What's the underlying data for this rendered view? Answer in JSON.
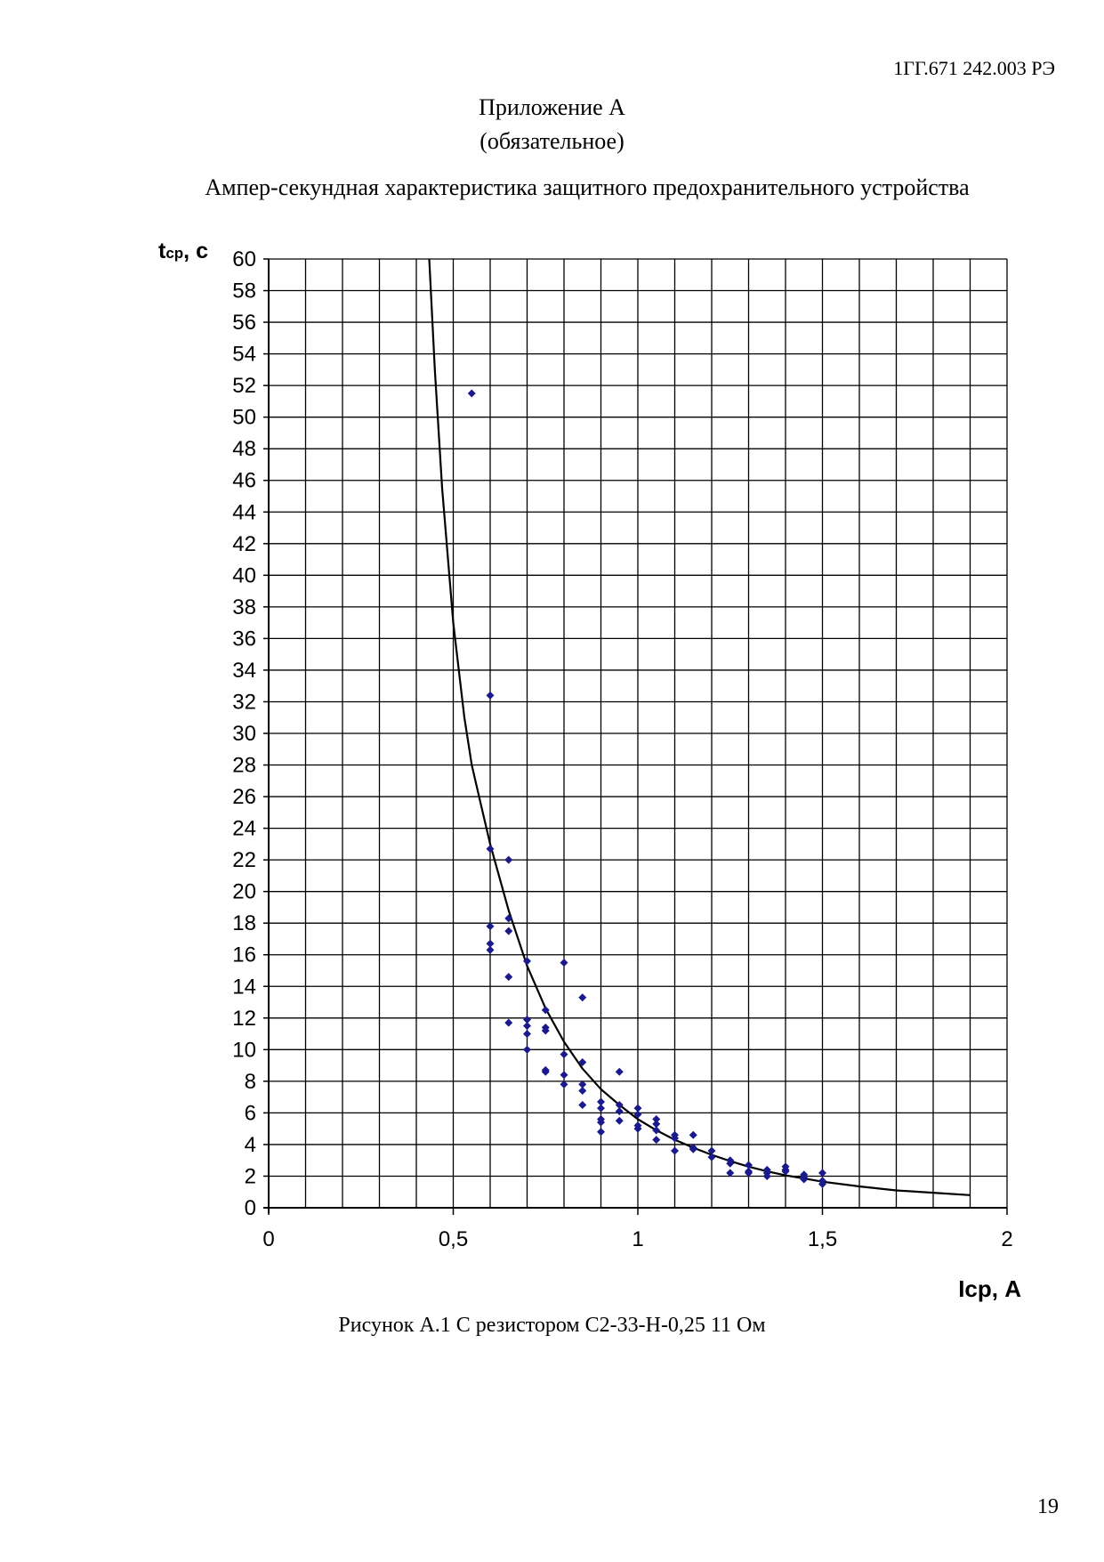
{
  "header": {
    "doc_code": "1ГГ.671 242.003 РЭ",
    "appendix_title": "Приложение А",
    "appendix_status": "(обязательное)",
    "chart_heading": "Ампер-секундная характеристика защитного предохранительного устройства"
  },
  "caption": "Рисунок А.1 С резистором С2-33-Н-0,25 11 Ом",
  "page_number": "19",
  "chart_data": {
    "type": "scatter",
    "title": "Ампер-секундная характеристика защитного предохранительного устройства",
    "ylabel_main": "t",
    "ylabel_sub": "ср",
    "ylabel_unit": ", с",
    "xlabel": "Iср, А",
    "xlim": [
      0,
      2
    ],
    "ylim": [
      0,
      60
    ],
    "x_ticks": [
      "0",
      "0,5",
      "1",
      "1,5",
      "2"
    ],
    "x_tick_values": [
      0,
      0.5,
      1,
      1.5,
      2
    ],
    "y_ticks": [
      0,
      2,
      4,
      6,
      8,
      10,
      12,
      14,
      16,
      18,
      20,
      22,
      24,
      26,
      28,
      30,
      32,
      34,
      36,
      38,
      40,
      42,
      44,
      46,
      48,
      50,
      52,
      54,
      56,
      58,
      60
    ],
    "x_grid_step": 0.1,
    "grid": true,
    "marker_color": "#1a1a8c",
    "curve_color": "#000000",
    "points": [
      [
        0.55,
        51.5
      ],
      [
        0.6,
        32.4
      ],
      [
        0.6,
        22.7
      ],
      [
        0.6,
        17.8
      ],
      [
        0.6,
        16.7
      ],
      [
        0.6,
        16.3
      ],
      [
        0.65,
        22.0
      ],
      [
        0.65,
        18.3
      ],
      [
        0.65,
        17.5
      ],
      [
        0.65,
        14.6
      ],
      [
        0.65,
        11.7
      ],
      [
        0.7,
        15.6
      ],
      [
        0.7,
        11.9
      ],
      [
        0.7,
        11.5
      ],
      [
        0.7,
        11.0
      ],
      [
        0.7,
        10.0
      ],
      [
        0.75,
        12.5
      ],
      [
        0.75,
        11.4
      ],
      [
        0.75,
        11.2
      ],
      [
        0.75,
        8.7
      ],
      [
        0.75,
        8.6
      ],
      [
        0.8,
        15.5
      ],
      [
        0.8,
        9.7
      ],
      [
        0.8,
        8.4
      ],
      [
        0.8,
        7.8
      ],
      [
        0.85,
        13.3
      ],
      [
        0.85,
        9.2
      ],
      [
        0.85,
        7.8
      ],
      [
        0.85,
        7.4
      ],
      [
        0.85,
        6.5
      ],
      [
        0.9,
        6.7
      ],
      [
        0.9,
        6.3
      ],
      [
        0.9,
        5.6
      ],
      [
        0.9,
        5.4
      ],
      [
        0.9,
        4.8
      ],
      [
        0.95,
        8.6
      ],
      [
        0.95,
        6.5
      ],
      [
        0.95,
        6.1
      ],
      [
        0.95,
        5.5
      ],
      [
        1.0,
        6.3
      ],
      [
        1.0,
        5.9
      ],
      [
        1.0,
        5.2
      ],
      [
        1.0,
        5.0
      ],
      [
        1.05,
        5.6
      ],
      [
        1.05,
        5.3
      ],
      [
        1.05,
        4.9
      ],
      [
        1.05,
        4.3
      ],
      [
        1.1,
        4.6
      ],
      [
        1.1,
        4.4
      ],
      [
        1.1,
        3.6
      ],
      [
        1.15,
        4.6
      ],
      [
        1.15,
        3.8
      ],
      [
        1.15,
        3.7
      ],
      [
        1.2,
        3.6
      ],
      [
        1.2,
        3.2
      ],
      [
        1.25,
        3.0
      ],
      [
        1.25,
        2.8
      ],
      [
        1.25,
        2.2
      ],
      [
        1.3,
        2.7
      ],
      [
        1.3,
        2.3
      ],
      [
        1.3,
        2.2
      ],
      [
        1.35,
        2.4
      ],
      [
        1.35,
        2.2
      ],
      [
        1.35,
        2.0
      ],
      [
        1.4,
        2.6
      ],
      [
        1.4,
        2.4
      ],
      [
        1.4,
        2.3
      ],
      [
        1.45,
        2.1
      ],
      [
        1.45,
        1.9
      ],
      [
        1.45,
        1.8
      ],
      [
        1.5,
        2.2
      ],
      [
        1.5,
        1.7
      ],
      [
        1.5,
        1.5
      ]
    ],
    "trend_curve": [
      [
        0.435,
        60.0
      ],
      [
        0.45,
        53.0
      ],
      [
        0.47,
        45.5
      ],
      [
        0.5,
        37.0
      ],
      [
        0.53,
        31.0
      ],
      [
        0.55,
        28.0
      ],
      [
        0.575,
        25.5
      ],
      [
        0.6,
        23.0
      ],
      [
        0.65,
        18.8
      ],
      [
        0.7,
        15.3
      ],
      [
        0.75,
        12.6
      ],
      [
        0.8,
        10.5
      ],
      [
        0.85,
        8.8
      ],
      [
        0.9,
        7.5
      ],
      [
        0.95,
        6.5
      ],
      [
        1.0,
        5.6
      ],
      [
        1.05,
        4.9
      ],
      [
        1.1,
        4.3
      ],
      [
        1.15,
        3.8
      ],
      [
        1.2,
        3.35
      ],
      [
        1.25,
        2.95
      ],
      [
        1.3,
        2.6
      ],
      [
        1.35,
        2.3
      ],
      [
        1.4,
        2.05
      ],
      [
        1.45,
        1.85
      ],
      [
        1.5,
        1.65
      ],
      [
        1.6,
        1.35
      ],
      [
        1.7,
        1.1
      ],
      [
        1.8,
        0.95
      ],
      [
        1.9,
        0.8
      ]
    ]
  }
}
